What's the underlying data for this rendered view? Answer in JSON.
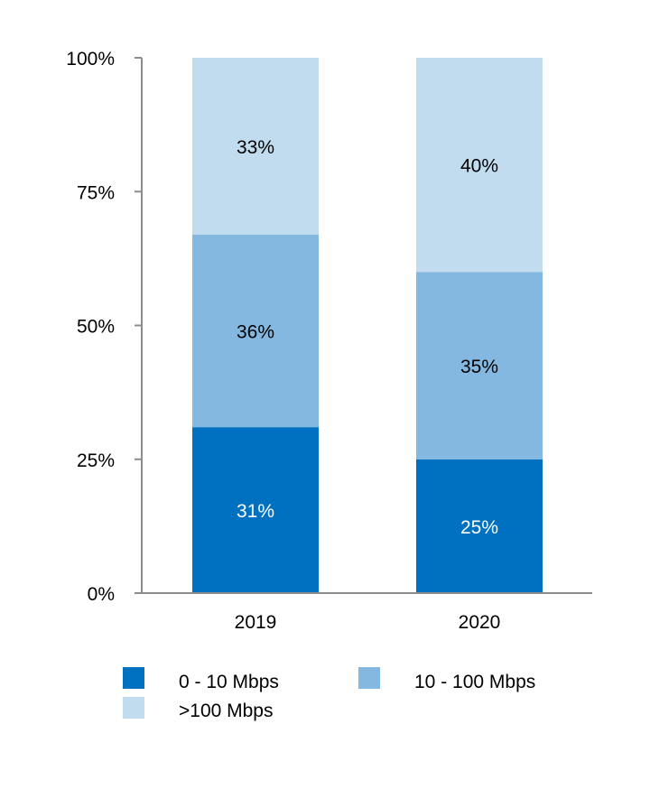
{
  "chart_data": {
    "type": "bar",
    "stacked": true,
    "categories": [
      "2019",
      "2020"
    ],
    "series": [
      {
        "name": "0 - 10 Mbps",
        "values": [
          31,
          25
        ],
        "labels": [
          "31%",
          "25%"
        ],
        "color": "#0070c0",
        "label_color": "#ffffff"
      },
      {
        "name": "10 - 100 Mbps",
        "values": [
          36,
          35
        ],
        "labels": [
          "36%",
          "35%"
        ],
        "color": "#84b8e0",
        "label_color": "#000000"
      },
      {
        "name": ">100 Mbps",
        "values": [
          33,
          40
        ],
        "labels": [
          "33%",
          "40%"
        ],
        "color": "#c1dcef",
        "label_color": "#000000"
      }
    ],
    "y_ticks": [
      {
        "value": 0,
        "label": "0%"
      },
      {
        "value": 25,
        "label": "25%"
      },
      {
        "value": 50,
        "label": "50%"
      },
      {
        "value": 75,
        "label": "75%"
      },
      {
        "value": 100,
        "label": "100%"
      }
    ],
    "ylim": [
      0,
      100
    ],
    "grid": false,
    "legend_position": "bottom"
  }
}
